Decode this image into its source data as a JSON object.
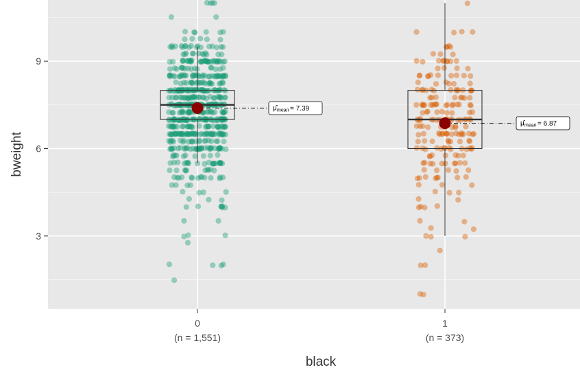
{
  "chart_data": {
    "type": "box-violin-jitter",
    "xlabel": "black",
    "ylabel": "bweight",
    "ylim": [
      0.5,
      11.1
    ],
    "yticks": [
      3,
      6,
      9
    ],
    "grid": true,
    "groups": [
      {
        "category": "0",
        "count_label": "(n = 1,551)",
        "color": "#1B9E77",
        "q1": 7.0,
        "median": 7.5,
        "q3": 8.0,
        "whisker_low": 5.5,
        "whisker_high": 9.5,
        "mean": 7.39,
        "mean_label": "= 7.39",
        "levels": [
          1.5,
          2,
          2.75,
          3,
          3.5,
          4,
          4.25,
          4.5,
          4.75,
          5,
          5.25,
          5.5,
          5.75,
          6,
          6.25,
          6.5,
          6.75,
          7,
          7.25,
          7.5,
          7.75,
          8,
          8.25,
          8.5,
          8.75,
          9,
          9.25,
          9.5,
          9.75,
          10,
          10.5,
          11
        ],
        "weights": [
          1,
          4,
          1,
          3,
          2,
          7,
          3,
          4,
          4,
          14,
          10,
          22,
          10,
          40,
          22,
          55,
          35,
          60,
          36,
          62,
          34,
          55,
          24,
          40,
          16,
          36,
          12,
          18,
          5,
          6,
          2,
          4
        ]
      },
      {
        "category": "1",
        "count_label": "(n = 373)",
        "color": "#D95F02",
        "q1": 6.0,
        "median": 7.0,
        "q3": 8.0,
        "whisker_low": 3.0,
        "whisker_high": 11.0,
        "mean": 6.87,
        "mean_label": "= 6.87",
        "levels": [
          1,
          2,
          2.5,
          3,
          3.25,
          3.5,
          4,
          4.25,
          4.5,
          4.75,
          5,
          5.25,
          5.5,
          5.75,
          6,
          6.25,
          6.5,
          6.75,
          7,
          7.25,
          7.5,
          7.75,
          8,
          8.25,
          8.5,
          8.75,
          9,
          9.25,
          9.5,
          10,
          11
        ],
        "weights": [
          2,
          2,
          1,
          3,
          2,
          2,
          4,
          2,
          3,
          3,
          8,
          5,
          10,
          7,
          14,
          9,
          18,
          10,
          18,
          9,
          18,
          8,
          14,
          6,
          10,
          4,
          9,
          3,
          4,
          4,
          1
        ]
      }
    ],
    "mean_point_color": "#8B0000"
  }
}
